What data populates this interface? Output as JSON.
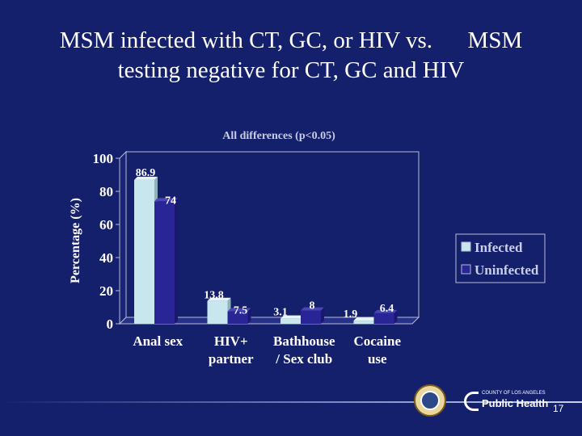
{
  "slide": {
    "title_lines": [
      "MSM infected with CT, GC, or HIV vs.      MSM",
      "testing negative for CT, GC and HIV"
    ],
    "page_number": "17"
  },
  "logos": {
    "seal_name": "county-seal",
    "public_health_small": "COUNTY OF LOS ANGELES",
    "public_health_big": "Public Health"
  },
  "colors": {
    "background": "#14206b",
    "infected": "#c7e6ee",
    "uninfected": "#2a2596",
    "chart_text": "#ffffff"
  },
  "chart_data": {
    "type": "bar",
    "title": "All differences (p<0.05)",
    "ylabel": "Percentage (%)",
    "xlabel": "",
    "ylim": [
      0,
      100
    ],
    "yticks": [
      0,
      20,
      40,
      60,
      80,
      100
    ],
    "categories": [
      [
        "Anal sex"
      ],
      [
        "HIV+",
        "partner"
      ],
      [
        "Bathhouse",
        "/ Sex club"
      ],
      [
        "Cocaine",
        "use"
      ]
    ],
    "series": [
      {
        "name": "Infected",
        "values": [
          86.9,
          13.8,
          3.1,
          1.9
        ],
        "labels": [
          "86.9",
          "13.8",
          "3.1",
          "1.9"
        ]
      },
      {
        "name": "Uninfected",
        "values": [
          74,
          7.5,
          8,
          6.4
        ],
        "labels": [
          "74",
          "7.5",
          "8",
          "6.4"
        ]
      }
    ],
    "grid": false,
    "legend_position": "right"
  }
}
